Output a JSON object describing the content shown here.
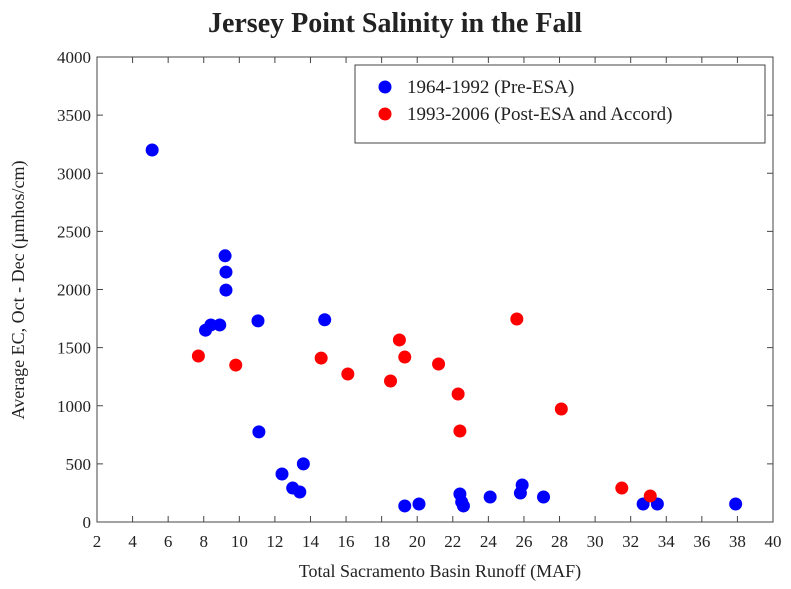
{
  "chart_data": {
    "type": "scatter",
    "title": "Jersey Point Salinity in the Fall",
    "x_label": "Total Sacramento Basin Runoff (MAF)",
    "y_label": "Average EC, Oct - Dec (µmhos/cm)",
    "xlim": [
      2,
      40
    ],
    "xticks": [
      2,
      4,
      6,
      8,
      10,
      12,
      14,
      16,
      18,
      20,
      22,
      24,
      26,
      28,
      30,
      32,
      34,
      36,
      38,
      40
    ],
    "ylim": [
      0,
      4000
    ],
    "yticks": [
      0,
      500,
      1000,
      1500,
      2000,
      2500,
      3000,
      3500,
      4000
    ],
    "grid": false,
    "legend": "upper right",
    "series": [
      {
        "name": "1964-1992 (Pre-ESA)",
        "color": "#0000ff",
        "x": [
          5.1,
          9.2,
          9.25,
          9.25,
          8.1,
          8.4,
          8.9,
          11.05,
          14.8,
          11.1,
          12.4,
          13.0,
          13.4,
          13.6,
          19.3,
          20.1,
          22.4,
          22.5,
          22.6,
          24.1,
          25.8,
          25.9,
          27.1,
          32.7,
          33.5,
          37.9
        ],
        "values": [
          3200,
          2290,
          2150,
          1995,
          1650,
          1695,
          1695,
          1730,
          1740,
          775,
          413,
          292,
          258,
          500,
          138,
          155,
          241,
          172,
          138,
          215,
          249,
          318,
          215,
          155,
          155,
          155
        ]
      },
      {
        "name": "1993-2006 (Post-ESA and Accord)",
        "color": "#ff0000",
        "x": [
          7.7,
          9.8,
          14.6,
          16.1,
          18.5,
          19.0,
          19.3,
          21.2,
          22.3,
          22.4,
          25.6,
          28.1,
          31.5,
          33.1
        ],
        "values": [
          1428,
          1350,
          1410,
          1273,
          1213,
          1566,
          1419,
          1359,
          1101,
          783,
          1746,
          972,
          292,
          224
        ]
      }
    ]
  }
}
